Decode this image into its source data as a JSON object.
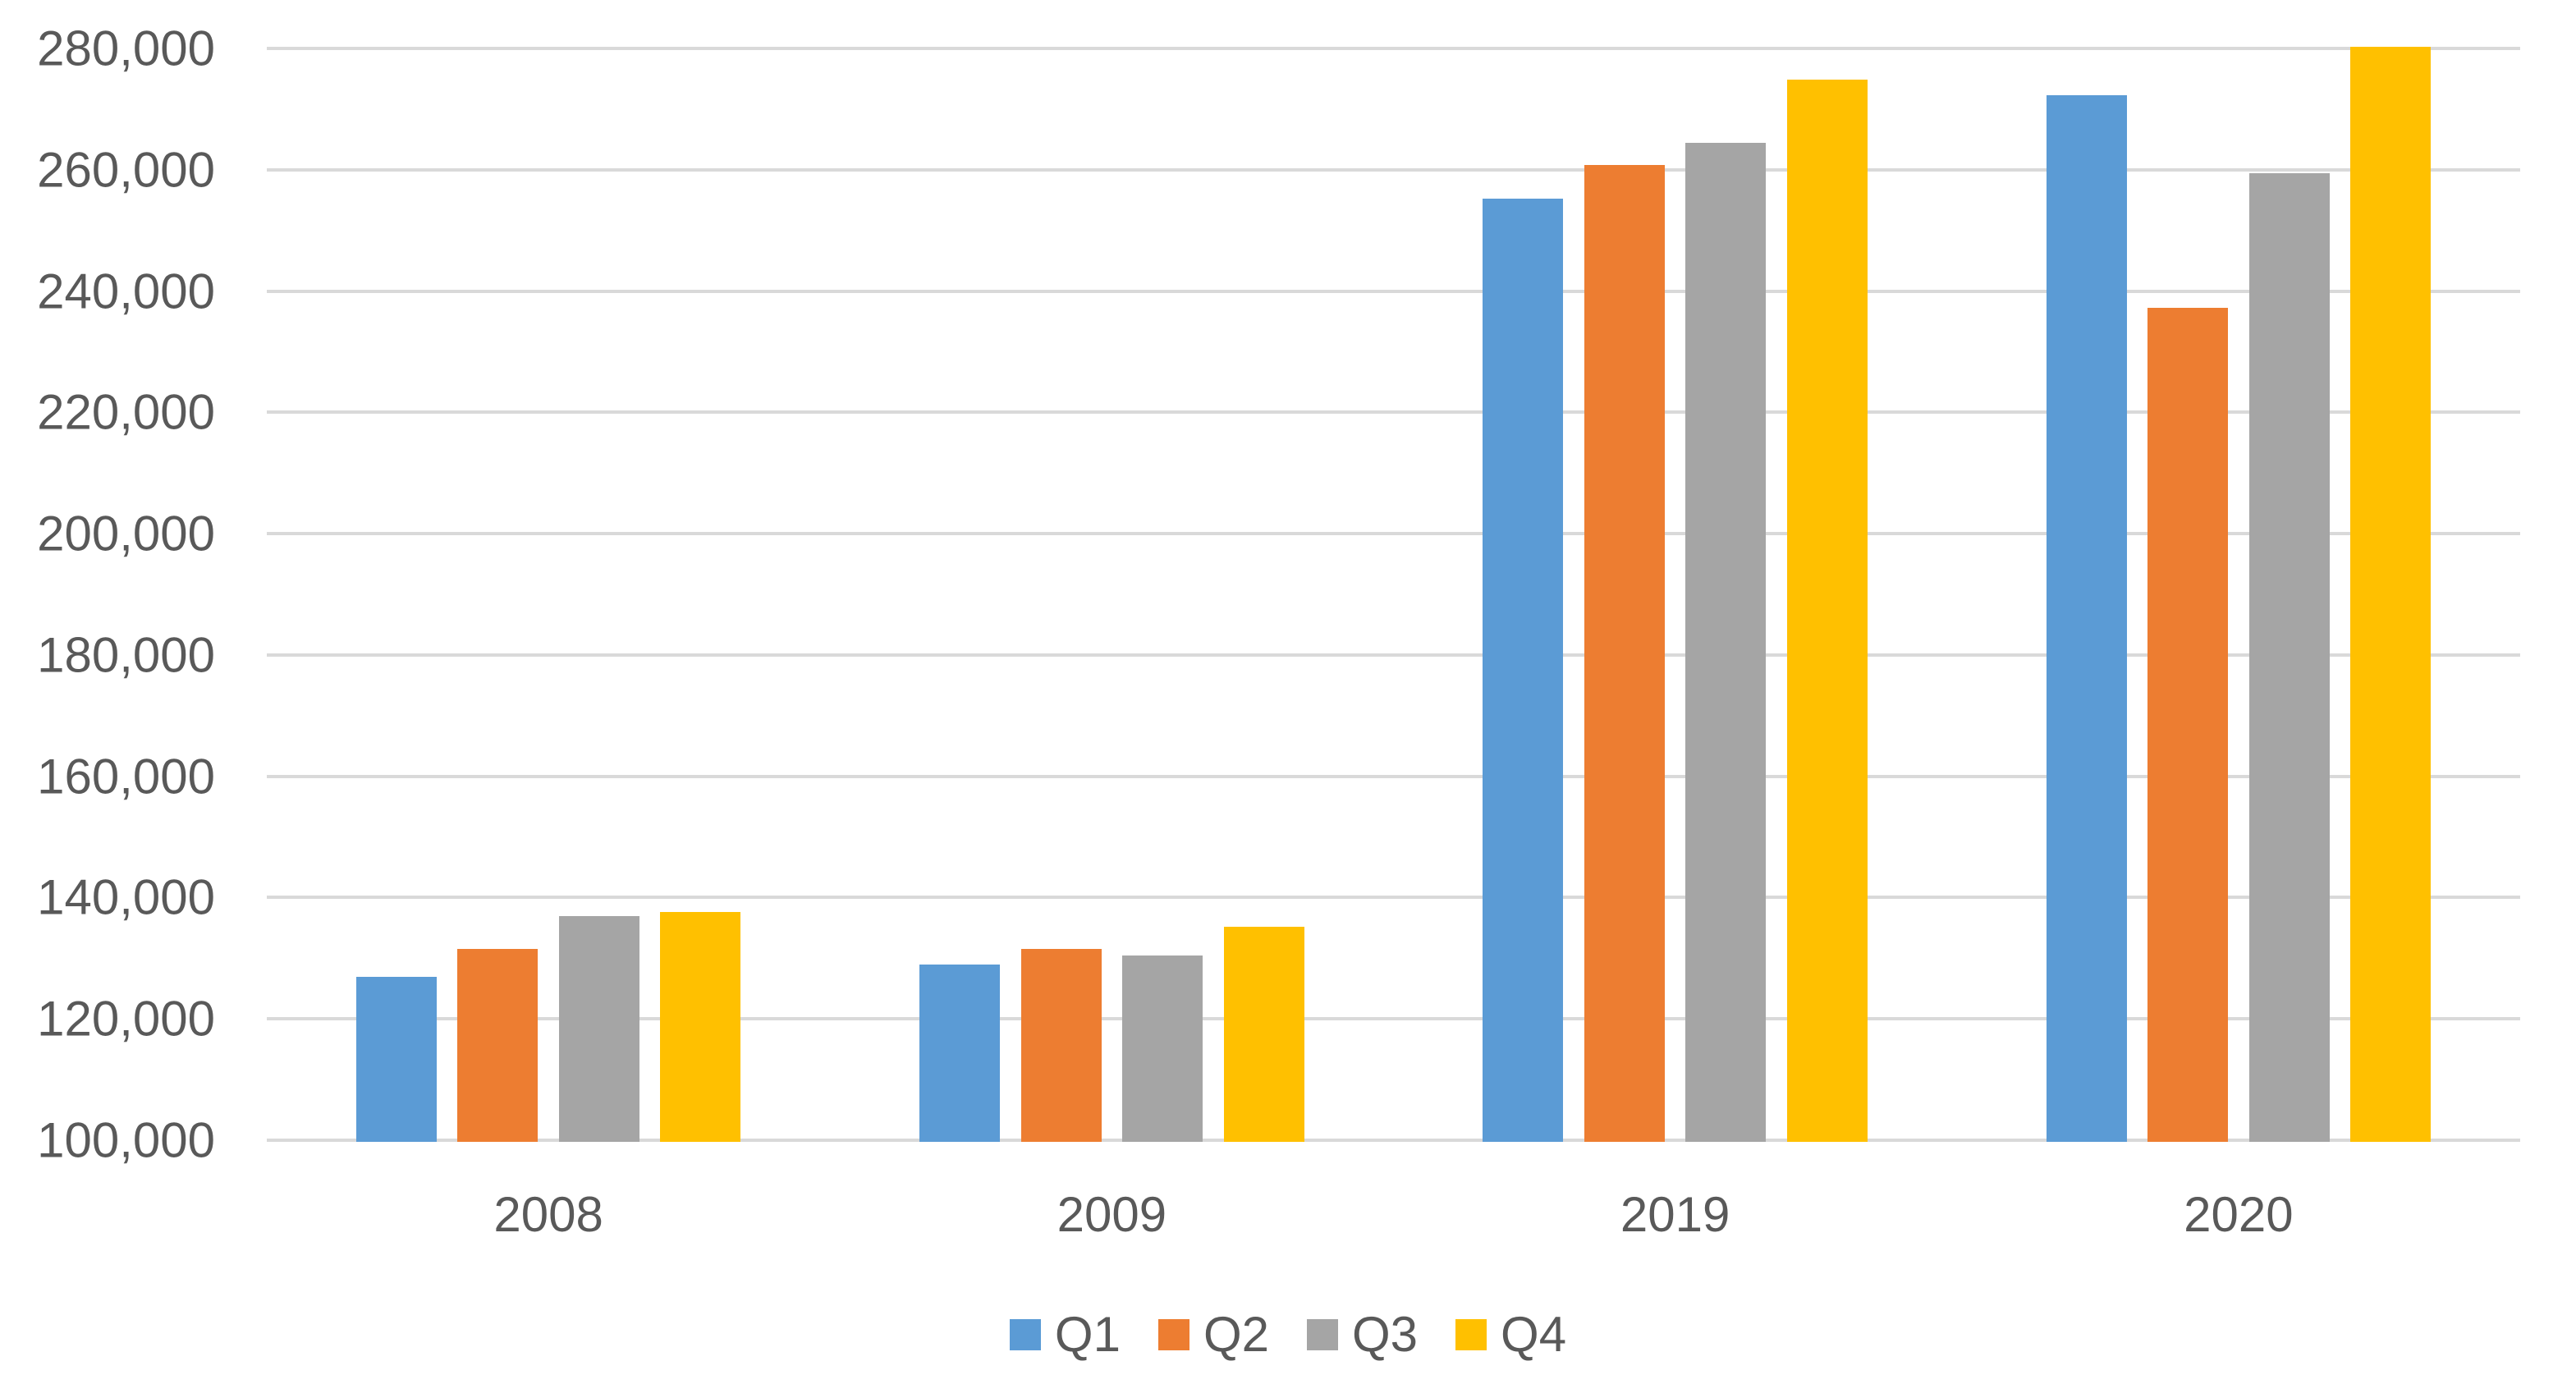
{
  "chart_data": {
    "type": "bar",
    "title": "",
    "categories": [
      "2008",
      "2009",
      "2019",
      "2020"
    ],
    "series": [
      {
        "name": "Q1",
        "color": "#5B9BD5",
        "values": [
          126900,
          129000,
          255200,
          272300
        ]
      },
      {
        "name": "Q2",
        "color": "#ED7D31",
        "values": [
          131500,
          131600,
          260800,
          237300
        ]
      },
      {
        "name": "Q3",
        "color": "#A5A5A5",
        "values": [
          137000,
          130400,
          264400,
          259400
        ]
      },
      {
        "name": "Q4",
        "color": "#FFC000",
        "values": [
          137600,
          135200,
          274800,
          280300
        ]
      }
    ],
    "ylim": [
      100000,
      280000
    ],
    "ytick_step": 20000,
    "ytick_labels": [
      "100,000",
      "120,000",
      "140,000",
      "160,000",
      "180,000",
      "200,000",
      "220,000",
      "240,000",
      "260,000",
      "280,000"
    ],
    "xlabel": "",
    "ylabel": "",
    "grid": true,
    "legend_position": "bottom",
    "legend_entries": [
      "Q1",
      "Q2",
      "Q3",
      "Q4"
    ]
  },
  "colors": {
    "background": "#FFFFFF",
    "gridline": "#D9D9D9",
    "axis_text": "#595959",
    "series_q1": "#5B9BD5",
    "series_q2": "#ED7D31",
    "series_q3": "#A5A5A5",
    "series_q4": "#FFC000"
  }
}
